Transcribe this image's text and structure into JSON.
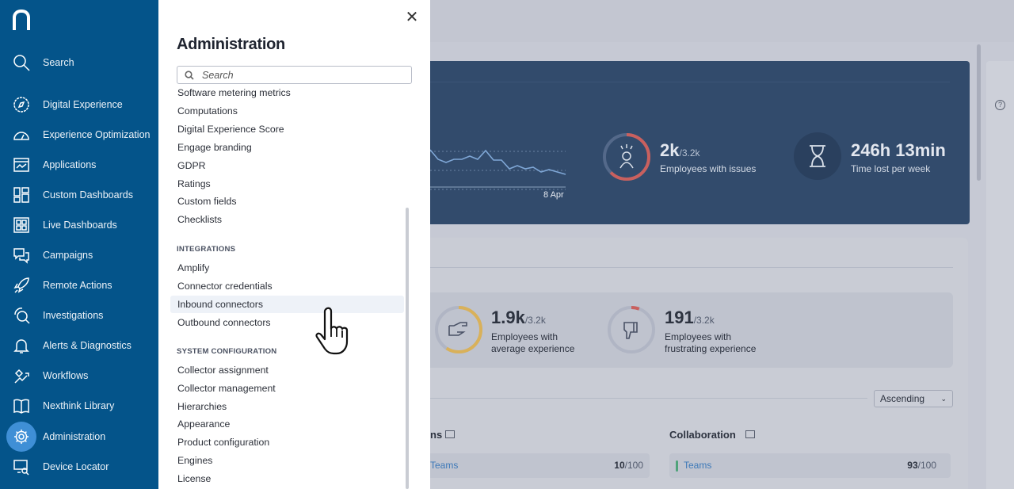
{
  "sidebar": {
    "logo": "n",
    "items": [
      {
        "label": "Search",
        "icon": "search-icon"
      },
      {
        "label": "Digital Experience",
        "icon": "compass-icon"
      },
      {
        "label": "Experience Optimization",
        "icon": "gauge-icon"
      },
      {
        "label": "Applications",
        "icon": "applications-icon"
      },
      {
        "label": "Custom Dashboards",
        "icon": "dashboard-icon"
      },
      {
        "label": "Live Dashboards",
        "icon": "live-dashboard-icon"
      },
      {
        "label": "Campaigns",
        "icon": "chat-icon"
      },
      {
        "label": "Remote Actions",
        "icon": "rocket-icon"
      },
      {
        "label": "Investigations",
        "icon": "investigation-icon"
      },
      {
        "label": "Alerts & Diagnostics",
        "icon": "bell-icon"
      },
      {
        "label": "Workflows",
        "icon": "workflow-icon"
      },
      {
        "label": "Nexthink Library",
        "icon": "book-icon"
      },
      {
        "label": "Administration",
        "icon": "gear-icon",
        "active": true
      },
      {
        "label": "Device Locator",
        "icon": "device-search-icon"
      }
    ]
  },
  "panel": {
    "title": "Administration",
    "search_placeholder": "Search",
    "items_top": [
      "Software metering metrics",
      "Computations",
      "Digital Experience Score",
      "Engage branding",
      "GDPR",
      "Ratings",
      "Custom fields",
      "Checklists"
    ],
    "integrations_header": "INTEGRATIONS",
    "integrations": [
      "Amplify",
      "Connector credentials",
      "Inbound connectors",
      "Outbound connectors"
    ],
    "system_header": "SYSTEM CONFIGURATION",
    "system": [
      "Collector assignment",
      "Collector management",
      "Hierarchies",
      "Appearance",
      "Product configuration",
      "Engines",
      "License"
    ]
  },
  "background": {
    "chart_date": "8 Apr",
    "issues": {
      "value": "2k",
      "total": "/3.2k",
      "label": "Employees with issues"
    },
    "time_lost": {
      "value": "246h 13min",
      "label": "Time lost per week"
    },
    "average": {
      "value": "1.9k",
      "total": "/3.2k",
      "label1": "Employees with",
      "label2": "average experience"
    },
    "frustrating": {
      "value": "191",
      "total": "/3.2k",
      "label1": "Employees with",
      "label2": "frustrating experience"
    },
    "sort": "Ascending",
    "col1": {
      "title_fragment": "ns",
      "row_name": "Teams",
      "score": "10",
      "max": "/100"
    },
    "col2": {
      "title": "Collaboration",
      "row_name": "Teams",
      "score": "93",
      "max": "/100"
    },
    "colors": {
      "sidebar": "#04548a",
      "card": "#324b6c",
      "red": "#c9605e",
      "gold": "#d9b15a",
      "green": "#4fa37a",
      "link": "#3d79b8"
    }
  }
}
